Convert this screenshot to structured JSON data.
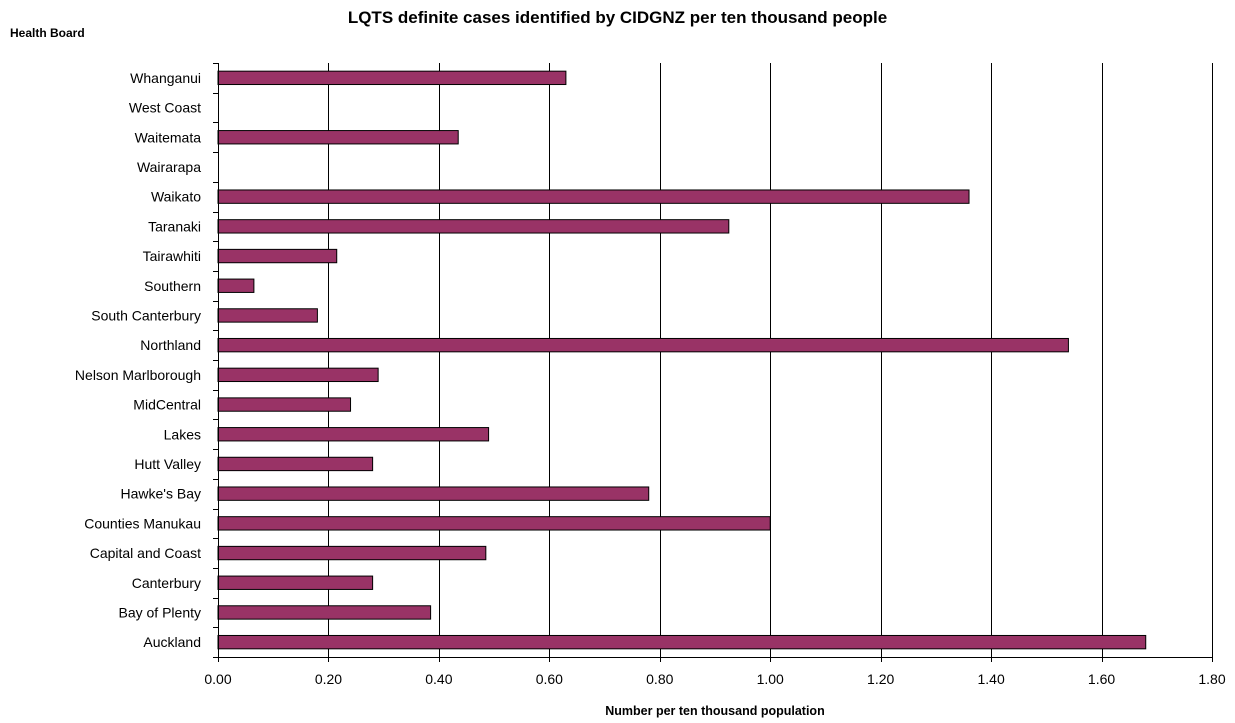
{
  "chart_data": {
    "type": "bar",
    "orientation": "horizontal",
    "title": "LQTS definite cases identified by CIDGNZ per ten thousand people",
    "ylabel": "Health Board",
    "xlabel": "Number per ten thousand population",
    "xlim": [
      0,
      1.8
    ],
    "x_ticks": [
      "0.00",
      "0.20",
      "0.40",
      "0.60",
      "0.80",
      "1.00",
      "1.20",
      "1.40",
      "1.60",
      "1.80"
    ],
    "grid": "vertical",
    "legend": "none",
    "bar_color": "#993366",
    "categories": [
      "Auckland",
      "Bay of Plenty",
      "Canterbury",
      "Capital and Coast",
      "Counties Manukau",
      "Hawke's Bay",
      "Hutt Valley",
      "Lakes",
      "MidCentral",
      "Nelson Marlborough",
      "Northland",
      "South Canterbury",
      "Southern",
      "Tairawhiti",
      "Taranaki",
      "Waikato",
      "Wairarapa",
      "Waitemata",
      "West Coast",
      "Whanganui"
    ],
    "values": [
      1.68,
      0.385,
      0.28,
      0.485,
      1.0,
      0.78,
      0.28,
      0.49,
      0.24,
      0.29,
      1.54,
      0.18,
      0.065,
      0.215,
      0.925,
      1.36,
      0,
      0.435,
      0,
      0.63
    ]
  }
}
